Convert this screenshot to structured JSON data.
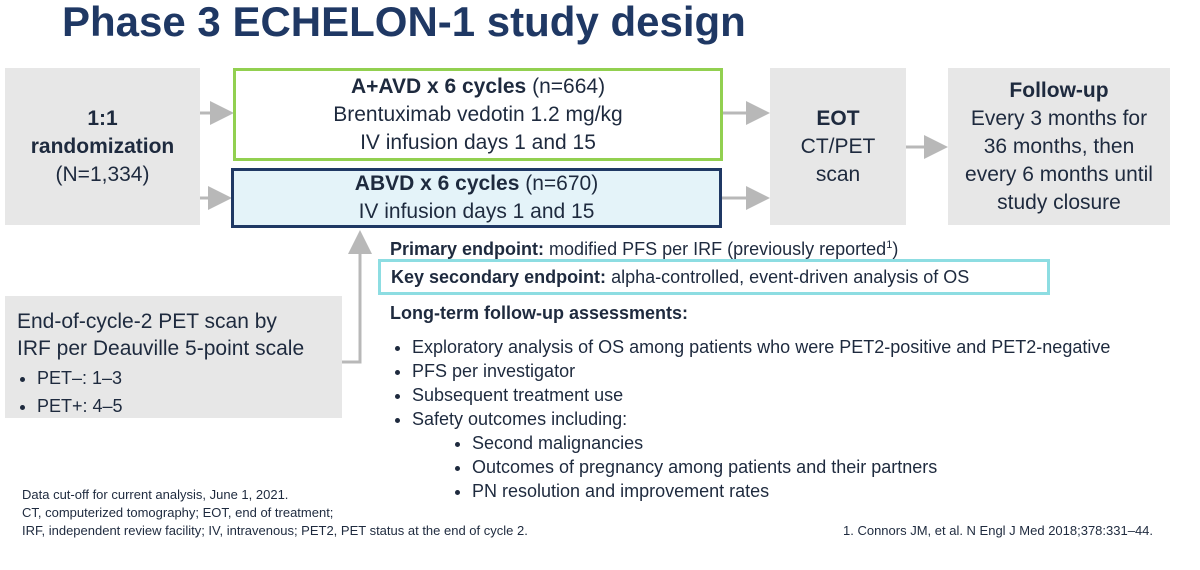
{
  "title": "Phase 3 ECHELON-1 study design",
  "randomization": {
    "lines": [
      "1:1",
      "randomization",
      "(N=1,334)"
    ]
  },
  "arm_a": {
    "bold": "A+AVD x 6 cycles",
    "n": "(n=664)",
    "lines": [
      "Brentuximab vedotin 1.2 mg/kg",
      "IV infusion days 1 and 15"
    ]
  },
  "arm_b": {
    "bold": "ABVD x 6 cycles",
    "n": "(n=670)",
    "lines": [
      "IV infusion days 1 and 15"
    ]
  },
  "eot": {
    "bold": "EOT",
    "lines": [
      "CT/PET",
      "scan"
    ]
  },
  "follow_up": {
    "bold": "Follow-up",
    "lines": [
      "Every 3 months for",
      "36 months, then",
      "every 6 months until",
      "study closure"
    ]
  },
  "pet_scan": {
    "lines": [
      "End-of-cycle-2 PET scan by",
      "IRF per Deauville 5-point scale"
    ],
    "bullets": [
      "PET–: 1–3",
      "PET+: 4–5"
    ]
  },
  "primary_endpoint": {
    "label": "Primary endpoint:",
    "text": "modified PFS per IRF (previously reported",
    "sup": "1",
    "text_end": ")"
  },
  "key_secondary": {
    "label": "Key secondary endpoint:",
    "text": "alpha-controlled, event-driven analysis of OS"
  },
  "long_term": {
    "label": "Long-term follow-up assessments:",
    "items": [
      "Exploratory analysis of OS among patients who were PET2-positive and PET2-negative",
      "PFS per investigator",
      "Subsequent treatment use",
      "Safety outcomes including:"
    ],
    "subitems": [
      "Second malignancies",
      "Outcomes of pregnancy among patients and their partners",
      "PN resolution and improvement rates"
    ]
  },
  "footnotes": [
    "Data cut-off for current analysis, June 1, 2021.",
    "CT, computerized tomography; EOT, end of treatment;",
    "IRF, independent review facility; IV, intravenous; PET2, PET status at the end of cycle 2."
  ],
  "reference": "1. Connors JM, et al. N Engl J Med 2018;378:331–44."
}
